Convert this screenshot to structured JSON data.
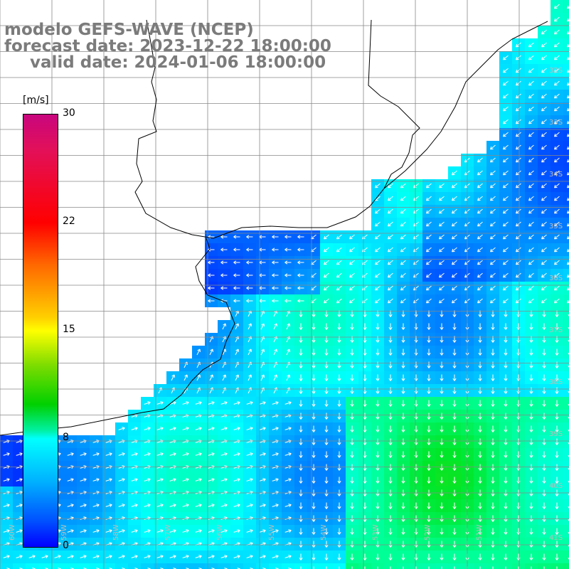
{
  "title": {
    "line1": "modelo GEFS-WAVE (NCEP)",
    "line2": "forecast date: 2023-12-22 18:00:00",
    "line3": "valid date: 2024-01-06 18:00:00"
  },
  "colorbar": {
    "unit": "[m/s]",
    "ticks": [
      "30",
      "22",
      "15",
      "8",
      "0"
    ],
    "range": [
      0,
      30
    ]
  },
  "lat_labels": [
    "32S",
    "33S",
    "34S",
    "35S",
    "36S",
    "37S",
    "38S",
    "39S",
    "40S",
    "41S"
  ],
  "lon_labels": [
    "60W",
    "59W",
    "58W",
    "57W",
    "56W",
    "55W",
    "54W",
    "53W",
    "52W",
    "51W"
  ],
  "colors": {
    "land": "#ffffff",
    "grid": "#888888",
    "coast": "#000000",
    "arrow": "#ffffff"
  },
  "legend_placement": "left"
}
